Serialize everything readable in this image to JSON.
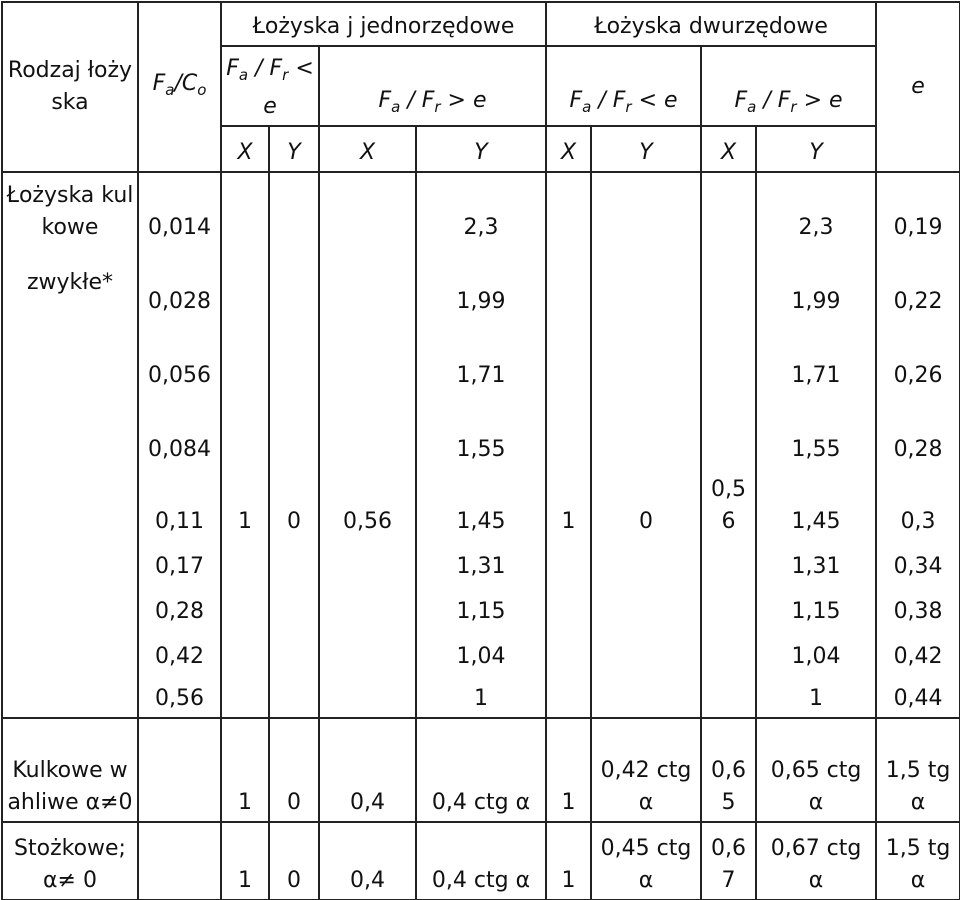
{
  "header": {
    "rodzaj": "Rodzaj łożyska",
    "fa_co": [
      "F",
      "a",
      "/C",
      "o"
    ],
    "single": "Łożyska j jednorzędowe",
    "double": "Łożyska dwurzędowe",
    "conditions": [
      [
        "F",
        "a",
        " / F",
        "r",
        " < e"
      ],
      [
        "F",
        "a",
        " / F",
        "r",
        " > e"
      ],
      [
        "F",
        "a",
        " / F",
        "r",
        " < e"
      ],
      [
        "F",
        "a",
        " / F",
        "r",
        " > e"
      ]
    ],
    "xy": [
      "X",
      "Y",
      "X",
      "Y",
      "X",
      "Y",
      "X",
      "Y"
    ],
    "e": "e"
  },
  "ball": {
    "label": "Łożyska kulkowe",
    "label2": "zwykłe*",
    "fa_co": [
      "0,014",
      "0,028",
      "0,056",
      "0,084",
      "0,11",
      "0,17",
      "0,28",
      "0,42",
      "0,56"
    ],
    "x1": "1",
    "y1": "0",
    "x2": "0,56",
    "x3": "1",
    "y3": "0",
    "x4": "0,56",
    "y2": [
      "2,3",
      "1,99",
      "1,71",
      "1,55",
      "1,45",
      "1,31",
      "1,15",
      "1,04",
      "1"
    ],
    "y4": [
      "2,3",
      "1,99",
      "1,71",
      "1,55",
      "1,45",
      "1,31",
      "1,15",
      "1,04",
      "1"
    ],
    "e": [
      "0,19",
      "0,22",
      "0,26",
      "0,28",
      "0,3",
      "0,34",
      "0,38",
      "0,42",
      "0,44"
    ]
  },
  "rows": [
    {
      "label": "Kulkowe wahliwe α≠0",
      "cells": [
        "1",
        "0",
        "0,4",
        "0,4 ctg α",
        "1",
        "0,42 ctg α",
        "0,65",
        "0,65 ctg α",
        "1,5 tg α"
      ]
    },
    {
      "label": "Stożkowe; α≠ 0",
      "cells": [
        "1",
        "0",
        "0,4",
        "0,4 ctg α",
        "1",
        "0,45 ctg α",
        "0,67",
        "0,67 ctg α",
        "1,5 tg α"
      ]
    }
  ]
}
